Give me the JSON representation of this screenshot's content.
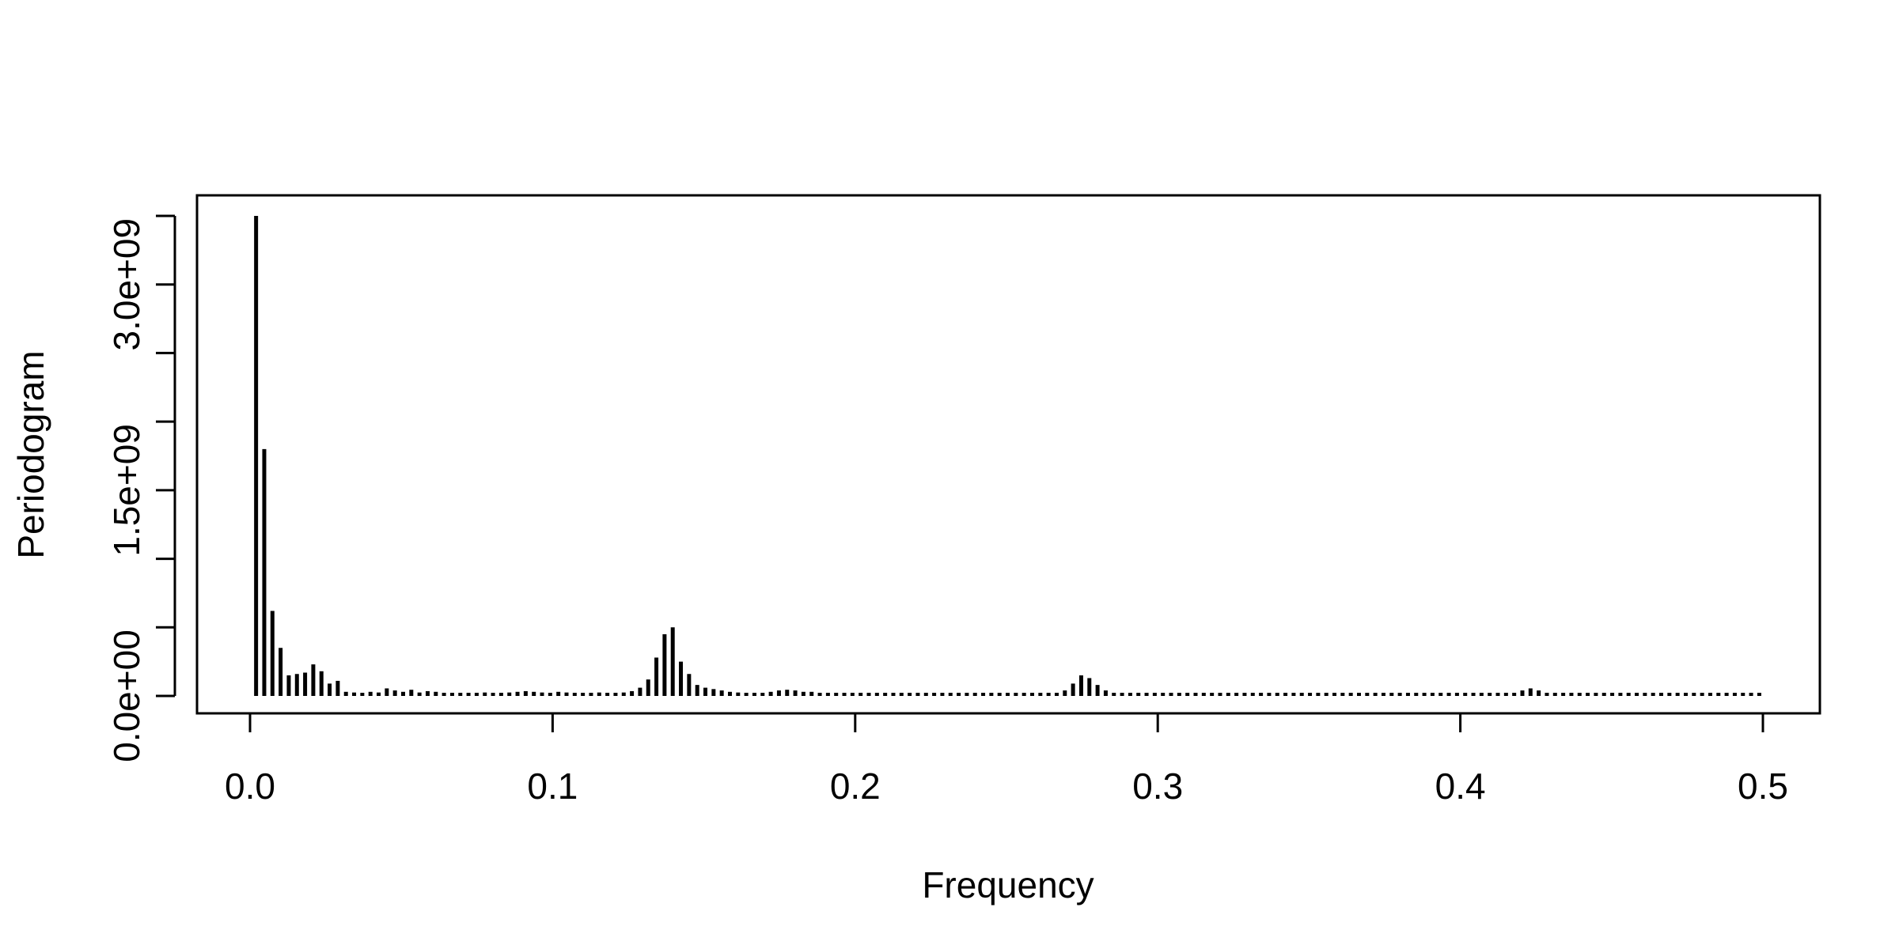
{
  "chart_data": {
    "type": "bar",
    "title": "",
    "xlabel": "Frequency",
    "ylabel": "Periodogram",
    "xlim": [
      0.0,
      0.5
    ],
    "ylim": [
      0,
      3500000000
    ],
    "x_ticks": [
      0.0,
      0.1,
      0.2,
      0.3,
      0.4,
      0.5
    ],
    "x_tick_labels": [
      "0.0",
      "0.1",
      "0.2",
      "0.3",
      "0.4",
      "0.5"
    ],
    "y_ticks": [
      0,
      500000000,
      1000000000,
      1500000000,
      2000000000,
      2500000000,
      3000000000,
      3500000000
    ],
    "y_tick_labels": [
      "0.0e+00",
      "",
      "",
      "1.5e+09",
      "",
      "",
      "3.0e+09",
      ""
    ],
    "grid": false,
    "legend": "none",
    "color": "#000000",
    "series": [
      {
        "x_start": 0.002,
        "x_step": 0.0027,
        "count": 181,
        "values": [
          3500000000,
          1800000000,
          620000000,
          350000000,
          150000000,
          160000000,
          170000000,
          230000000,
          180000000,
          90000000,
          110000000,
          30000000,
          25000000,
          20000000,
          30000000,
          25000000,
          55000000,
          40000000,
          30000000,
          45000000,
          25000000,
          35000000,
          30000000,
          20000000,
          15000000,
          20000000,
          15000000,
          20000000,
          25000000,
          15000000,
          20000000,
          25000000,
          30000000,
          35000000,
          30000000,
          25000000,
          20000000,
          30000000,
          25000000,
          20000000,
          20000000,
          20000000,
          25000000,
          20000000,
          20000000,
          25000000,
          35000000,
          60000000,
          120000000,
          280000000,
          450000000,
          500000000,
          250000000,
          160000000,
          80000000,
          60000000,
          50000000,
          40000000,
          30000000,
          25000000,
          20000000,
          20000000,
          20000000,
          30000000,
          40000000,
          45000000,
          40000000,
          30000000,
          30000000,
          20000000,
          15000000,
          15000000,
          15000000,
          15000000,
          15000000,
          15000000,
          15000000,
          15000000,
          15000000,
          15000000,
          15000000,
          15000000,
          15000000,
          15000000,
          15000000,
          15000000,
          15000000,
          15000000,
          15000000,
          15000000,
          15000000,
          15000000,
          15000000,
          15000000,
          15000000,
          15000000,
          15000000,
          15000000,
          20000000,
          40000000,
          90000000,
          150000000,
          130000000,
          80000000,
          40000000,
          20000000,
          15000000,
          15000000,
          15000000,
          15000000,
          15000000,
          15000000,
          15000000,
          15000000,
          15000000,
          15000000,
          15000000,
          15000000,
          15000000,
          15000000,
          15000000,
          15000000,
          15000000,
          15000000,
          15000000,
          15000000,
          15000000,
          15000000,
          15000000,
          15000000,
          15000000,
          15000000,
          15000000,
          15000000,
          15000000,
          15000000,
          15000000,
          15000000,
          15000000,
          15000000,
          15000000,
          15000000,
          15000000,
          15000000,
          15000000,
          15000000,
          15000000,
          15000000,
          15000000,
          15000000,
          15000000,
          15000000,
          15000000,
          15000000,
          20000000,
          40000000,
          55000000,
          40000000,
          20000000,
          15000000,
          15000000,
          15000000,
          15000000,
          15000000,
          15000000,
          15000000,
          15000000,
          15000000,
          15000000,
          15000000,
          15000000,
          15000000,
          15000000,
          15000000,
          15000000,
          15000000,
          15000000,
          15000000,
          15000000,
          15000000,
          15000000,
          15000000,
          15000000,
          15000000,
          15000000
        ]
      }
    ]
  }
}
